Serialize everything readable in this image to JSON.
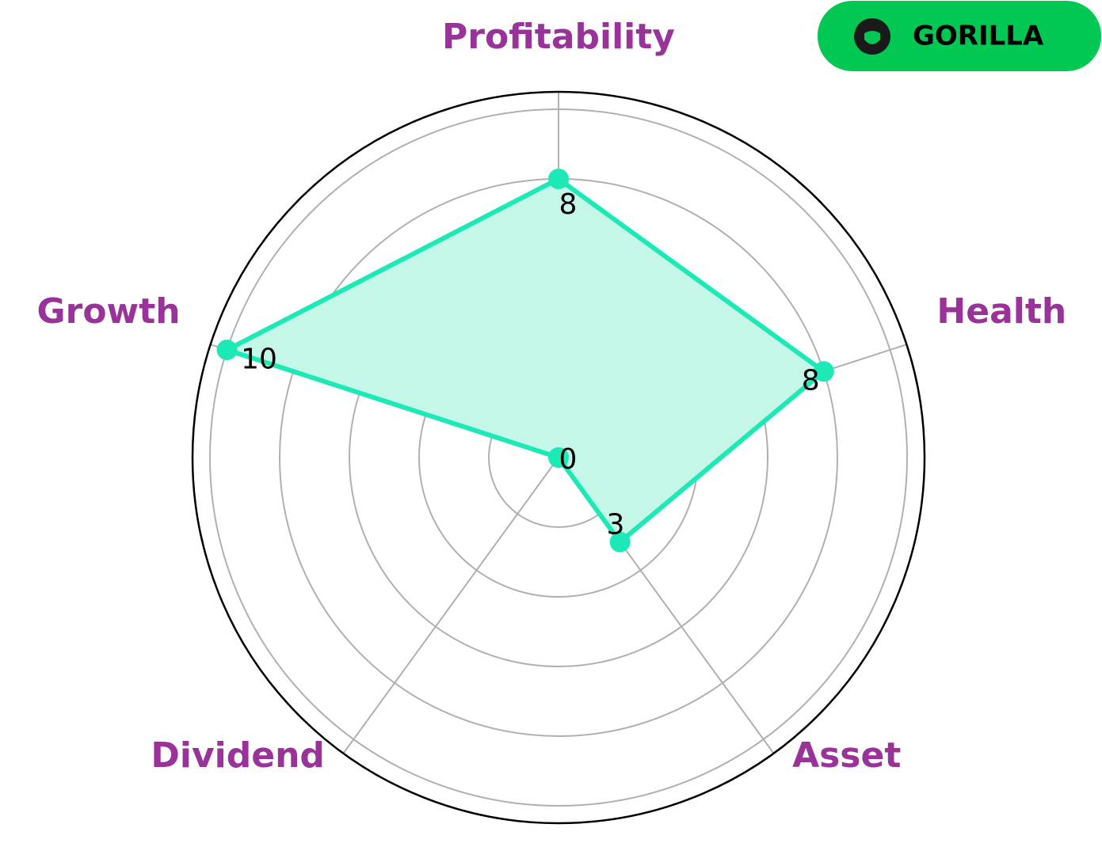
{
  "logo": {
    "text": "GORILLA"
  },
  "chart_data": {
    "type": "radar",
    "categories": [
      "Profitability",
      "Health",
      "Asset",
      "Dividend",
      "Growth"
    ],
    "values": [
      8,
      8,
      3,
      0,
      10
    ],
    "color": "#1de9b6",
    "fill": "#c5f7e8",
    "label_color": "#993399",
    "ylim": [
      0,
      10.5
    ],
    "yticks": [
      2,
      4,
      6,
      8,
      10
    ],
    "grid": true
  }
}
